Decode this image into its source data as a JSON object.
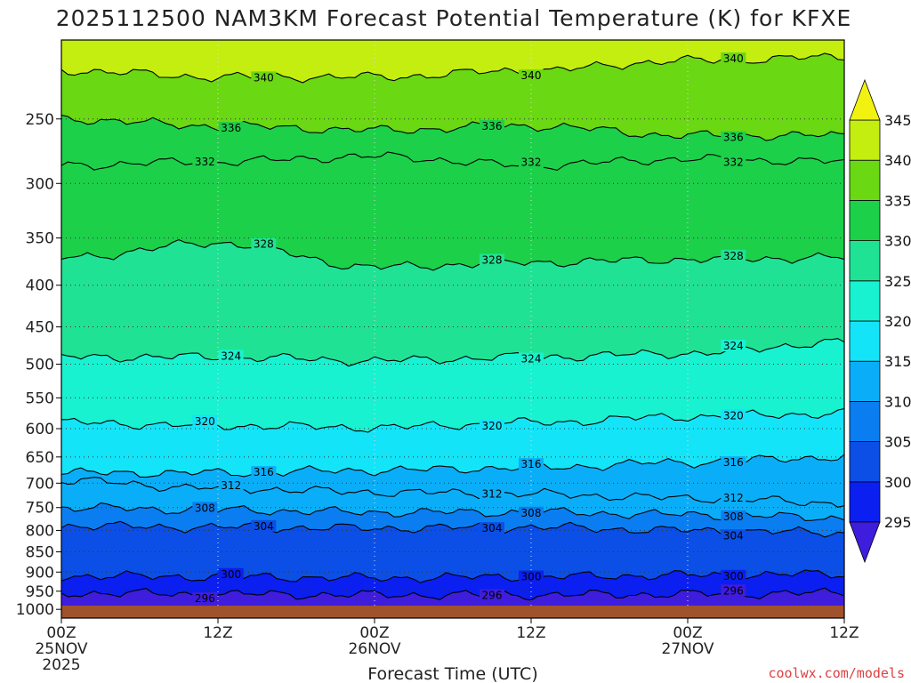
{
  "chart_data": {
    "type": "contour",
    "title": "2025112500 NAM3KM Forecast Potential Temperature (K) for KFXE",
    "xlabel": "Forecast Time (UTC)",
    "ylabel": "",
    "y_scale": "pressure (log)",
    "ylim": [
      1025,
      200
    ],
    "y_ticks": [
      250,
      300,
      350,
      400,
      450,
      500,
      550,
      600,
      650,
      700,
      750,
      800,
      850,
      900,
      950,
      1000
    ],
    "x_range_hours": [
      0,
      60
    ],
    "x_ticks": [
      {
        "hour": 0,
        "labels": [
          "00Z",
          "25NOV",
          "2025"
        ]
      },
      {
        "hour": 12,
        "labels": [
          "12Z"
        ]
      },
      {
        "hour": 24,
        "labels": [
          "00Z",
          "26NOV"
        ]
      },
      {
        "hour": 36,
        "labels": [
          "12Z"
        ]
      },
      {
        "hour": 48,
        "labels": [
          "00Z",
          "27NOV"
        ]
      },
      {
        "hour": 60,
        "labels": [
          "12Z"
        ]
      }
    ],
    "grid": true,
    "colorbar": {
      "placement": "right",
      "levels": [
        295,
        300,
        305,
        310,
        315,
        320,
        325,
        330,
        335,
        340,
        345
      ],
      "colors": [
        "#3f1ddd",
        "#0a1ff0",
        "#0b4fe6",
        "#0a7ef0",
        "#0aaef8",
        "#14e4f8",
        "#18f2d0",
        "#20e294",
        "#1cd04a",
        "#6ad812",
        "#c4ee10",
        "#f2f212"
      ]
    },
    "isentropes": [
      {
        "theta": 296,
        "pressure": [
          955,
          958,
          960,
          960,
          958,
          955
        ]
      },
      {
        "theta": 300,
        "pressure": [
          910,
          912,
          915,
          912,
          908,
          905
        ]
      },
      {
        "theta": 304,
        "pressure": [
          790,
          793,
          795,
          793,
          800,
          805
        ]
      },
      {
        "theta": 308,
        "pressure": [
          750,
          755,
          760,
          760,
          765,
          772
        ]
      },
      {
        "theta": 312,
        "pressure": [
          695,
          710,
          718,
          722,
          730,
          740
        ]
      },
      {
        "theta": 316,
        "pressure": [
          680,
          680,
          675,
          670,
          660,
          650
        ]
      },
      {
        "theta": 320,
        "pressure": [
          590,
          595,
          598,
          590,
          580,
          575
        ]
      },
      {
        "theta": 324,
        "pressure": [
          490,
          490,
          495,
          490,
          485,
          470
        ]
      },
      {
        "theta": 328,
        "pressure": [
          370,
          355,
          380,
          375,
          372,
          370
        ]
      },
      {
        "theta": 332,
        "pressure": [
          285,
          282,
          278,
          285,
          280,
          282
        ]
      },
      {
        "theta": 336,
        "pressure": [
          250,
          255,
          258,
          255,
          262,
          262
        ]
      },
      {
        "theta": 340,
        "pressure": [
          218,
          222,
          222,
          218,
          212,
          210
        ]
      }
    ],
    "surface_fill_color": "#a0522d",
    "credit": "coolwx.com/models"
  }
}
